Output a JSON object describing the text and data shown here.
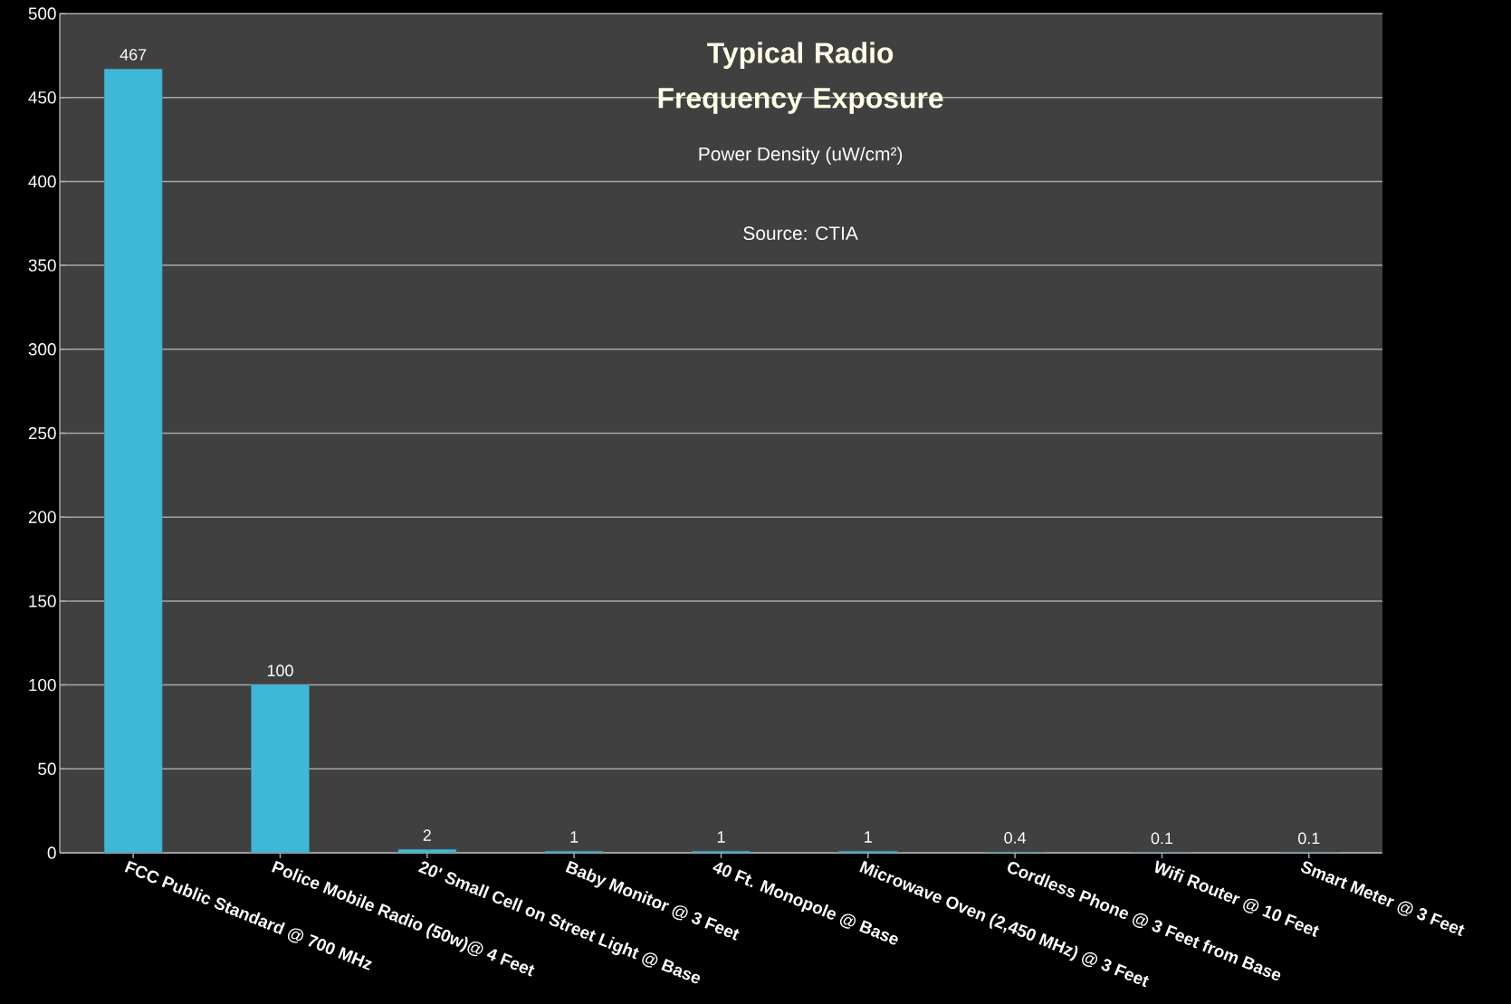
{
  "chart_data": {
    "type": "bar",
    "title": "Typical Radio Frequency Exposure",
    "subtitle": "Power Density (uW/cm²)",
    "annotations": [
      "Source: CTIA"
    ],
    "categories": [
      "FCC Public Standard @ 700 MHz",
      "Police Mobile Radio (50w)@ 4 Feet",
      "20' Small Cell on Street Light @ Base",
      "Baby Monitor @ 3 Feet",
      "40 Ft. Monopole @ Base",
      "Microwave Oven (2,450 MHz) @ 3 Feet",
      "Cordless Phone @ 3 Feet from Base",
      "Wifi Router @ 10 Feet",
      "Smart Meter @ 3 Feet"
    ],
    "values": [
      467,
      100,
      2,
      1,
      1,
      1,
      0.4,
      0.1,
      0.1
    ],
    "color": "#3fb8d8",
    "ylim": [
      0,
      500
    ],
    "yticks": [
      0,
      50,
      100,
      150,
      200,
      250,
      300,
      350,
      400,
      450,
      500
    ],
    "grid": "y",
    "data_labels": true
  }
}
